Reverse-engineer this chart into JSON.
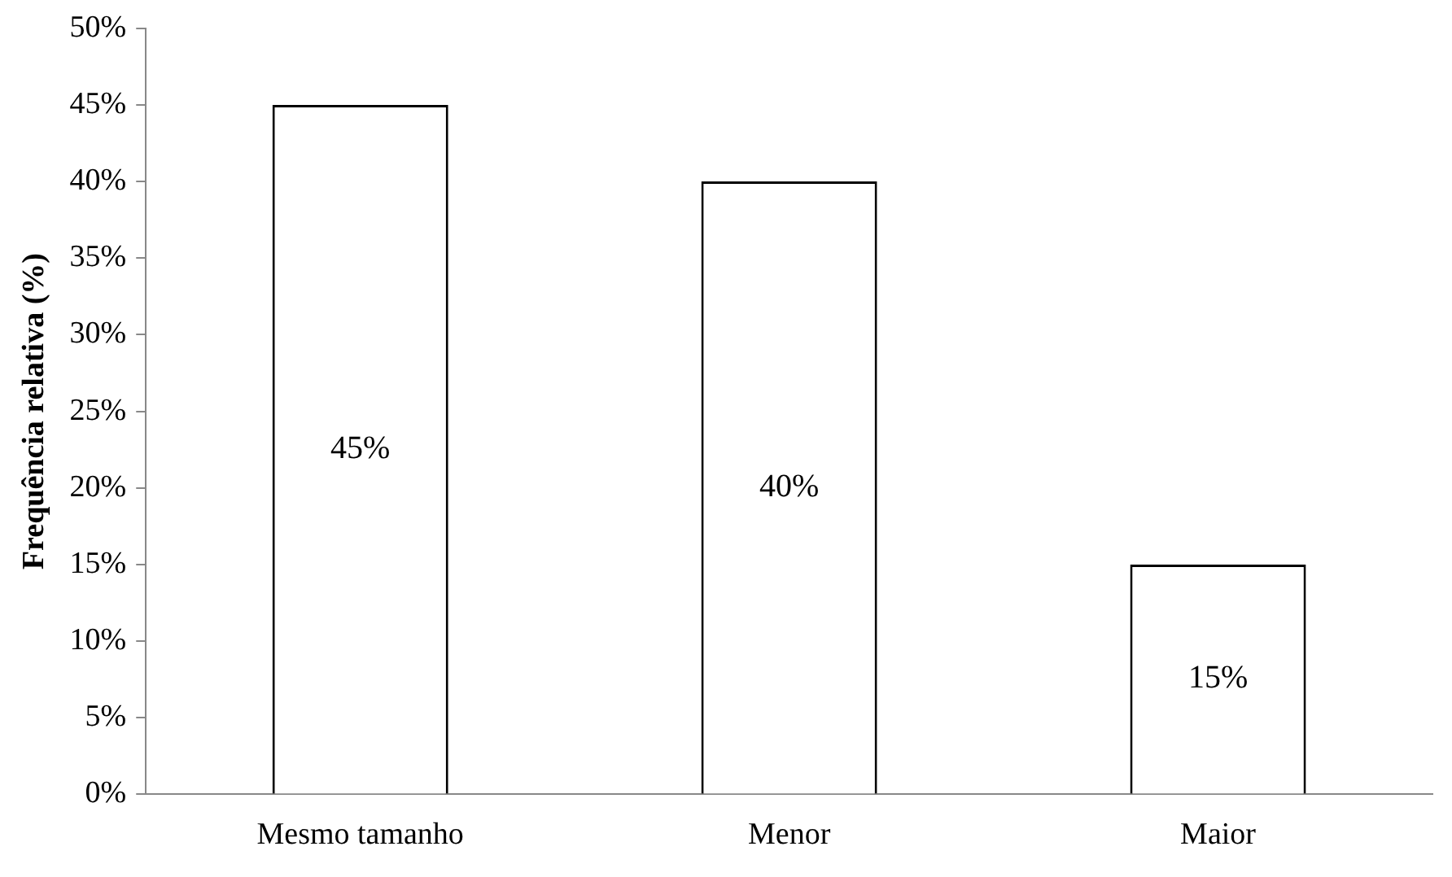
{
  "chart_data": {
    "type": "bar",
    "ylabel": "Frequência relativa (%)",
    "categories": [
      "Mesmo tamanho",
      "Menor",
      "Maior"
    ],
    "values": [
      45,
      40,
      15
    ],
    "color": "#ffffff",
    "value_labels": [
      "45%",
      "40%",
      "15%"
    ],
    "ylim": [
      0,
      50
    ],
    "yticks": [
      {
        "value": 0,
        "label": "0%"
      },
      {
        "value": 5,
        "label": "5%"
      },
      {
        "value": 10,
        "label": "10%"
      },
      {
        "value": 15,
        "label": "15%"
      },
      {
        "value": 20,
        "label": "20%"
      },
      {
        "value": 25,
        "label": "25%"
      },
      {
        "value": 30,
        "label": "30%"
      },
      {
        "value": 35,
        "label": "35%"
      },
      {
        "value": 40,
        "label": "40%"
      },
      {
        "value": 45,
        "label": "45%"
      },
      {
        "value": 50,
        "label": "50%"
      }
    ],
    "grid": false,
    "legend": false
  }
}
